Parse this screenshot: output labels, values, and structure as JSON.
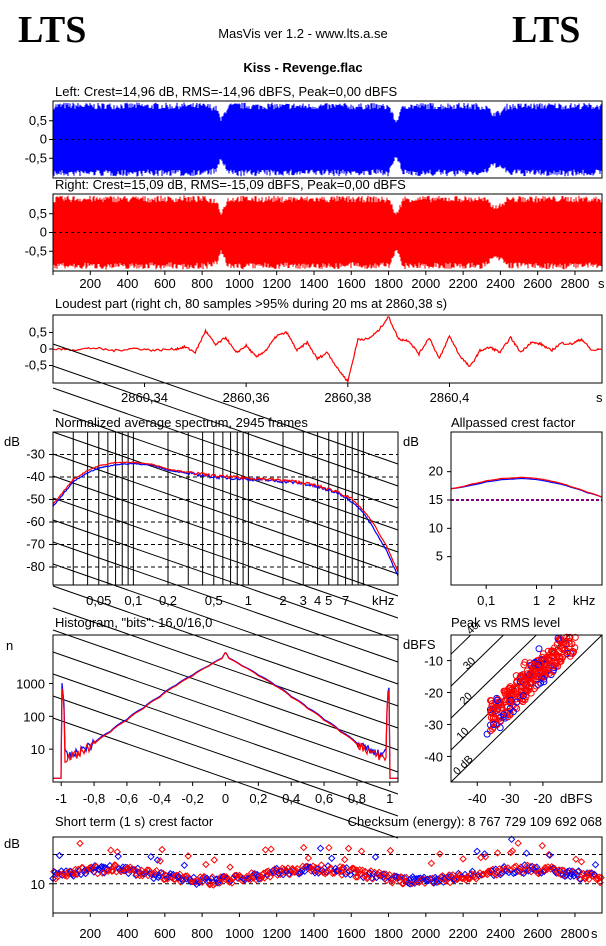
{
  "header": {
    "logo_left": "LTS",
    "logo_right": "LTS",
    "app_title": "MasVis ver 1.2 - www.lts.a.se",
    "track_title": "Kiss - Revenge.flac"
  },
  "colors": {
    "left": "#0000ff",
    "right": "#ff0000"
  },
  "chart_data": [
    {
      "id": "left",
      "type": "area",
      "title": "Left: Crest=14,96 dB, RMS=-14,96 dBFS, Peak=0,00 dBFS",
      "yticks": [
        "0,5",
        "0",
        "-0,5"
      ],
      "ylim": [
        -1,
        1
      ],
      "envelope_x": [
        0,
        60,
        120,
        180,
        220,
        230,
        270,
        280,
        300,
        330,
        360,
        400,
        430,
        460,
        480,
        520,
        560,
        600,
        640,
        680,
        720,
        740,
        760,
        800,
        820,
        840,
        880,
        900,
        940,
        980,
        1000,
        1050,
        1100,
        1150,
        1200,
        1220,
        1260,
        1300,
        1340,
        1400,
        1440,
        1480,
        1500,
        1540,
        1600,
        1640,
        1680,
        1700,
        1740,
        1780,
        1800,
        1840,
        1880,
        1920,
        1940,
        1980,
        2000,
        2040,
        2080,
        2100,
        2140,
        2160,
        2200,
        2240,
        2280,
        2320,
        2360,
        2400,
        2440,
        2480,
        2520,
        2560,
        2600,
        2640,
        2680,
        2700,
        2720,
        2760,
        2800,
        2820,
        2860,
        2900,
        2940
      ],
      "envelope_y": [
        0.98,
        0.99,
        0.99,
        0.98,
        0.98,
        0.97,
        0.98,
        0.99,
        0.98,
        0.98,
        0.99,
        0.98,
        0.98,
        0.99,
        0.98,
        0.97,
        0.99,
        0.98,
        0.97,
        0.99,
        0.99,
        0.97,
        0.98,
        0.98,
        0.97,
        0.96,
        0.9,
        0.55,
        0.97,
        0.98,
        0.99,
        0.98,
        0.97,
        0.98,
        0.98,
        0.96,
        0.98,
        0.98,
        0.97,
        0.97,
        0.98,
        0.96,
        0.98,
        0.98,
        0.97,
        0.96,
        0.98,
        0.98,
        0.97,
        0.95,
        0.99,
        0.5,
        0.98,
        0.98,
        0.97,
        0.98,
        0.98,
        0.98,
        0.97,
        0.98,
        0.98,
        0.99,
        0.98,
        0.97,
        0.98,
        0.95,
        0.75,
        0.78,
        0.98,
        0.96,
        0.98,
        0.98,
        0.97,
        0.99,
        0.98,
        0.98,
        0.98,
        0.98,
        0.97,
        0.98,
        0.98,
        0.97,
        0.97
      ]
    },
    {
      "id": "right",
      "type": "area",
      "title": "Right: Crest=15,09 dB, RMS=-15,09 dBFS, Peak=0,00 dBFS",
      "yticks": [
        "0,5",
        "0",
        "-0,5"
      ],
      "ylim": [
        -1,
        1
      ],
      "xticks": [
        "200",
        "400",
        "600",
        "800",
        "1000",
        "1200",
        "1400",
        "1600",
        "1800",
        "2000",
        "2200",
        "2400",
        "2600",
        "2800"
      ],
      "xunit": "s",
      "envelope_x": [
        0,
        60,
        120,
        180,
        220,
        230,
        270,
        280,
        300,
        330,
        360,
        400,
        430,
        460,
        480,
        520,
        560,
        600,
        640,
        680,
        720,
        740,
        760,
        800,
        820,
        840,
        880,
        900,
        940,
        980,
        1000,
        1050,
        1100,
        1150,
        1200,
        1220,
        1260,
        1300,
        1340,
        1400,
        1440,
        1480,
        1500,
        1540,
        1600,
        1640,
        1680,
        1700,
        1740,
        1780,
        1800,
        1840,
        1880,
        1920,
        1940,
        1980,
        2000,
        2040,
        2080,
        2100,
        2140,
        2160,
        2200,
        2240,
        2280,
        2320,
        2360,
        2400,
        2440,
        2480,
        2520,
        2560,
        2600,
        2640,
        2680,
        2700,
        2720,
        2760,
        2800,
        2820,
        2860,
        2900,
        2940
      ],
      "envelope_y": [
        0.97,
        0.98,
        0.99,
        0.98,
        0.98,
        0.97,
        0.98,
        0.99,
        0.98,
        0.98,
        0.99,
        0.98,
        0.98,
        0.99,
        0.98,
        0.97,
        0.99,
        0.98,
        0.97,
        0.99,
        0.99,
        0.97,
        0.98,
        0.98,
        0.97,
        0.96,
        0.9,
        0.55,
        0.97,
        0.98,
        0.99,
        0.98,
        0.97,
        0.98,
        0.98,
        0.96,
        0.98,
        0.98,
        0.97,
        0.97,
        0.98,
        0.96,
        0.98,
        0.98,
        0.97,
        0.96,
        0.98,
        0.98,
        0.97,
        0.95,
        0.99,
        0.5,
        0.98,
        0.98,
        0.97,
        0.98,
        0.98,
        0.98,
        0.97,
        0.98,
        0.98,
        0.99,
        0.98,
        0.97,
        0.98,
        0.95,
        0.75,
        0.78,
        0.98,
        0.96,
        0.98,
        0.98,
        0.97,
        0.99,
        0.98,
        0.98,
        0.98,
        0.98,
        0.97,
        0.98,
        0.98,
        0.97,
        0.97
      ]
    },
    {
      "id": "loudest",
      "type": "line",
      "title": "Loudest part (right ch, 80 samples >95% during 20 ms at 2860,38 s)",
      "yticks": [
        "0,5",
        "0",
        "-0,5"
      ],
      "ylim": [
        -1,
        1
      ],
      "xlim": [
        2860.322,
        2860.43
      ],
      "xticks": [
        "2860,34",
        "2860,36",
        "2860,38",
        "2860,4"
      ],
      "xunit": "s",
      "x": [
        2860.322,
        2860.326,
        2860.33,
        2860.334,
        2860.338,
        2860.342,
        2860.346,
        2860.348,
        2860.35,
        2860.352,
        2860.354,
        2860.356,
        2860.358,
        2860.36,
        2860.362,
        2860.364,
        2860.366,
        2860.368,
        2860.37,
        2860.372,
        2860.374,
        2860.376,
        2860.378,
        2860.38,
        2860.382,
        2860.384,
        2860.386,
        2860.388,
        2860.39,
        2860.392,
        2860.394,
        2860.396,
        2860.398,
        2860.4,
        2860.402,
        2860.404,
        2860.406,
        2860.408,
        2860.41,
        2860.412,
        2860.414,
        2860.416,
        2860.418,
        2860.42,
        2860.422,
        2860.424,
        2860.426,
        2860.428,
        2860.43
      ],
      "y": [
        0.0,
        -0.02,
        0.03,
        -0.05,
        0.02,
        -0.04,
        0.0,
        0.06,
        -0.1,
        0.55,
        0.12,
        0.35,
        -0.12,
        0.1,
        -0.25,
        -0.02,
        0.4,
        0.5,
        -0.05,
        0.2,
        -0.3,
        -0.1,
        -0.6,
        -0.98,
        0.3,
        0.3,
        0.55,
        0.98,
        0.3,
        0.25,
        -0.15,
        0.35,
        -0.3,
        0.4,
        -0.2,
        -0.55,
        -0.05,
        0.05,
        -0.1,
        0.35,
        -0.1,
        0.2,
        0.15,
        -0.05,
        0.18,
        0.15,
        0.3,
        -0.05,
        0.0
      ]
    },
    {
      "id": "spectrum",
      "type": "line",
      "title": "Normalized average spectrum, 2945 frames",
      "ylabel": "dB",
      "xunit": "kHz",
      "yticks": [
        "-30",
        "-40",
        "-50",
        "-60",
        "-70",
        "-80"
      ],
      "ylim": [
        -88,
        -20
      ],
      "xlim": [
        0.02,
        20
      ],
      "xscale": "log",
      "xticks": [
        "0,05",
        "0,1",
        "0,2",
        "0,5",
        "1",
        "2",
        "3",
        "4",
        "5",
        "7"
      ],
      "x": [
        0.02,
        0.025,
        0.03,
        0.04,
        0.05,
        0.07,
        0.1,
        0.15,
        0.2,
        0.3,
        0.5,
        0.7,
        1,
        1.5,
        2,
        3,
        4,
        5,
        6,
        7,
        8,
        10,
        12,
        14,
        16,
        18,
        20
      ],
      "series": [
        {
          "color": "#0000ff",
          "y": [
            -53,
            -47,
            -42,
            -38,
            -36,
            -34.5,
            -34,
            -35,
            -37,
            -38.5,
            -40,
            -40.5,
            -41,
            -41.5,
            -42,
            -43,
            -44.5,
            -46,
            -47,
            -49,
            -51,
            -56,
            -62,
            -68,
            -73,
            -79,
            -84
          ]
        },
        {
          "color": "#ff0000",
          "y": [
            -52,
            -46,
            -41,
            -37,
            -35,
            -33.5,
            -33.5,
            -34.5,
            -36.5,
            -38,
            -39.5,
            -40,
            -40.5,
            -41,
            -41.5,
            -42.5,
            -44,
            -45.5,
            -46.5,
            -48.5,
            -50,
            -55,
            -60,
            -66,
            -71,
            -77,
            -82
          ]
        }
      ]
    },
    {
      "id": "allpass",
      "type": "line",
      "title": "Allpassed crest factor",
      "ylabel": "dB",
      "xunit": "kHz",
      "yticks": [
        "20",
        "15",
        "10",
        "5"
      ],
      "ylim": [
        0,
        27
      ],
      "xscale": "log",
      "xlim": [
        0.02,
        20
      ],
      "xticks": [
        "0,1",
        "1",
        "2"
      ],
      "x": [
        0.02,
        0.05,
        0.1,
        0.2,
        0.5,
        1,
        2,
        5,
        10,
        20
      ],
      "reference_db": 15,
      "series": [
        {
          "color": "#0000ff",
          "y": [
            17,
            17.6,
            18.2,
            18.6,
            18.8,
            18.6,
            18.1,
            17.2,
            16.3,
            15.5
          ]
        },
        {
          "color": "#ff0000",
          "y": [
            17,
            17.8,
            18.4,
            18.8,
            19.0,
            18.8,
            18.3,
            17.3,
            16.4,
            15.5
          ]
        }
      ]
    },
    {
      "id": "histogram",
      "type": "line",
      "title": "Histogram, \"bits\": 16,0/16,0",
      "ylabel": "n",
      "yscale": "log",
      "yticks": [
        "1000",
        "100",
        "10"
      ],
      "ylim": [
        1,
        30000
      ],
      "xlim": [
        -1.05,
        1.05
      ],
      "xticks": [
        "-1",
        "-0,8",
        "-0,6",
        "-0,4",
        "-0,2",
        "0",
        "0,2",
        "0,4",
        "0,6",
        "0,8",
        "1"
      ],
      "x": [
        -1,
        -0.98,
        -0.96,
        -0.9,
        -0.8,
        -0.7,
        -0.6,
        -0.5,
        -0.4,
        -0.3,
        -0.2,
        -0.1,
        -0.02,
        0,
        0.02,
        0.1,
        0.2,
        0.3,
        0.4,
        0.5,
        0.6,
        0.7,
        0.8,
        0.9,
        0.96,
        0.98,
        1
      ],
      "series": [
        {
          "color": "#0000ff",
          "y": [
            1200,
            8,
            6,
            8,
            15,
            35,
            80,
            180,
            400,
            900,
            1800,
            3500,
            6000,
            9000,
            6000,
            3500,
            1800,
            900,
            400,
            180,
            80,
            35,
            15,
            8,
            7,
            9,
            1200
          ]
        },
        {
          "color": "#ff0000",
          "y": [
            1000,
            5,
            6,
            7,
            14,
            33,
            75,
            170,
            380,
            850,
            1700,
            3400,
            5800,
            9000,
            5800,
            3400,
            1700,
            850,
            380,
            170,
            75,
            33,
            14,
            7,
            6,
            5,
            1000
          ]
        }
      ]
    },
    {
      "id": "peakrms",
      "type": "scatter",
      "title": "Peak vs RMS level",
      "ylabel": "dBFS",
      "xunit": "dBFS",
      "yticks": [
        "-10",
        "-20",
        "-30",
        "-40"
      ],
      "xticks": [
        "-40",
        "-30",
        "-20"
      ],
      "xlim": [
        -48,
        -2
      ],
      "ylim": [
        -48,
        -2
      ],
      "diagonal_labels": [
        "0 dB",
        "10",
        "20",
        "30",
        "40"
      ],
      "points_red": [
        [
          -36,
          -32
        ],
        [
          -34,
          -30
        ],
        [
          -33,
          -28
        ],
        [
          -31,
          -26
        ],
        [
          -30,
          -27
        ],
        [
          -29,
          -24
        ],
        [
          -28,
          -22
        ],
        [
          -27,
          -21
        ],
        [
          -26,
          -20
        ],
        [
          -25,
          -18
        ],
        [
          -24,
          -17
        ],
        [
          -23,
          -16
        ],
        [
          -22,
          -15
        ],
        [
          -21,
          -14
        ],
        [
          -20,
          -13
        ],
        [
          -19,
          -12
        ],
        [
          -18,
          -10
        ],
        [
          -17,
          -9
        ],
        [
          -16,
          -8
        ],
        [
          -15,
          -7
        ],
        [
          -14,
          -6
        ],
        [
          -13,
          -5
        ],
        [
          -12,
          -4
        ],
        [
          -26,
          -22
        ],
        [
          -24,
          -19
        ],
        [
          -22,
          -18
        ],
        [
          -20,
          -15
        ],
        [
          -18,
          -14
        ],
        [
          -16,
          -11
        ],
        [
          -14,
          -9
        ],
        [
          -28,
          -25
        ],
        [
          -30,
          -23
        ],
        [
          -25,
          -15
        ],
        [
          -23,
          -13
        ],
        [
          -21,
          -11
        ],
        [
          -19,
          -9
        ],
        [
          -17,
          -7
        ],
        [
          -22,
          -12
        ]
      ],
      "points_blue": [
        [
          -37,
          -33
        ],
        [
          -35,
          -30
        ],
        [
          -32,
          -27
        ],
        [
          -30,
          -25
        ],
        [
          -28,
          -23
        ],
        [
          -33,
          -31
        ],
        [
          -29,
          -26
        ],
        [
          -26,
          -21
        ]
      ]
    },
    {
      "id": "shortcrest",
      "type": "scatter",
      "title": "Short term (1 s) crest factor",
      "checksum": "Checksum (energy):  8 767 729 109 692 068",
      "ylabel": "dB",
      "yticks": [
        "10"
      ],
      "ylim": [
        0,
        26
      ],
      "xlim": [
        0,
        2945
      ],
      "xticks": [
        "200",
        "400",
        "600",
        "800",
        "1000",
        "1200",
        "1400",
        "1600",
        "1800",
        "2000",
        "2200",
        "2400",
        "2600",
        "2800"
      ],
      "xunit": "s",
      "reference_lines": [
        10,
        20
      ]
    }
  ]
}
